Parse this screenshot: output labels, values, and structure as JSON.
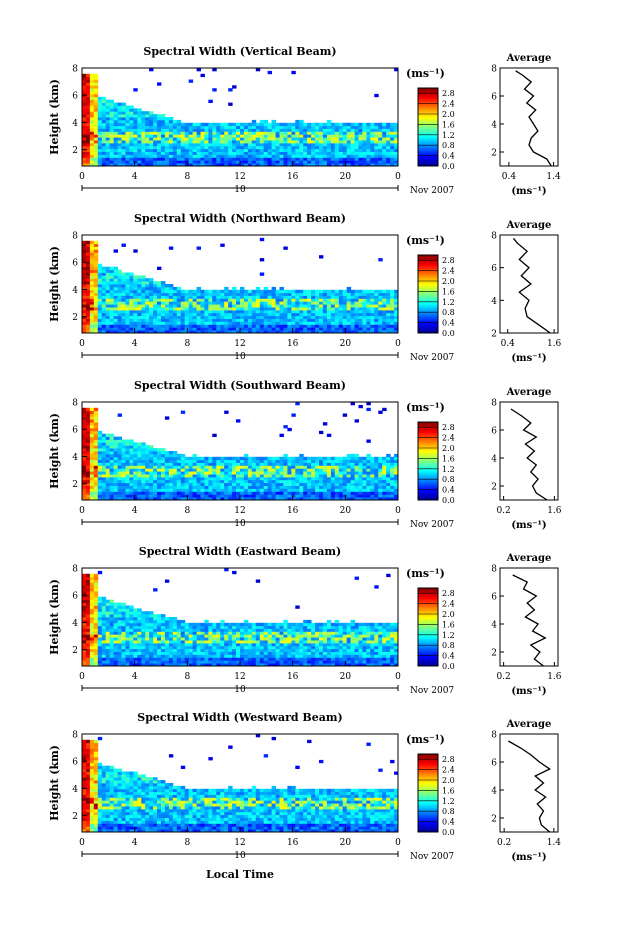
{
  "figure": {
    "x_axis_label": "Local Time",
    "date_label": "Nov 2007",
    "unit_label": "(ms⁻¹)",
    "average_title": "Average",
    "y_axis_label": "Height (km)"
  },
  "chart_data": [
    {
      "type": "heatmap",
      "title": "Spectral Width (Vertical Beam)",
      "xlabel": "Local Time",
      "ylabel": "Height (km)",
      "x_ticks": [
        "0",
        "4",
        "8",
        "12",
        "16",
        "20",
        "0"
      ],
      "x_date_label": "10",
      "x_date_suffix": "Nov 2007",
      "y_ticks": [
        "2",
        "4",
        "6",
        "8"
      ],
      "xlim": [
        0,
        24
      ],
      "ylim": [
        0.8,
        8
      ],
      "colorbar": {
        "label": "(ms⁻¹)",
        "ticks": [
          "0.0",
          "0.4",
          "0.8",
          "1.2",
          "1.6",
          "2.0",
          "2.4",
          "2.8"
        ],
        "range": [
          0,
          3.0
        ]
      },
      "cloud_top_km": 4.0,
      "average_profile": {
        "title": "Average",
        "xlabel": "(ms⁻¹)",
        "x_ticks": [
          "0.4",
          "1.4"
        ],
        "xlim": [
          0.2,
          1.5
        ],
        "ylim": [
          1,
          8
        ],
        "height_km": [
          1.0,
          1.5,
          2.0,
          2.5,
          3.0,
          3.5,
          4.0,
          4.5,
          5.0,
          5.5,
          6.0,
          6.5,
          7.0,
          7.5,
          7.8
        ],
        "width": [
          1.35,
          1.25,
          0.95,
          0.85,
          0.9,
          1.05,
          0.95,
          0.85,
          1.0,
          0.8,
          0.95,
          0.75,
          0.9,
          0.7,
          0.55
        ]
      }
    },
    {
      "type": "heatmap",
      "title": "Spectral Width (Northward Beam)",
      "xlabel": "Local Time",
      "ylabel": "Height (km)",
      "x_ticks": [
        "0",
        "4",
        "8",
        "12",
        "16",
        "20",
        "0"
      ],
      "x_date_label": "10",
      "x_date_suffix": "Nov 2007",
      "y_ticks": [
        "2",
        "4",
        "6",
        "8"
      ],
      "xlim": [
        0,
        24
      ],
      "ylim": [
        0.8,
        8
      ],
      "colorbar": {
        "label": "(ms⁻¹)",
        "ticks": [
          "0.0",
          "0.4",
          "0.8",
          "1.2",
          "1.6",
          "2.0",
          "2.4",
          "2.8"
        ],
        "range": [
          0,
          3.0
        ]
      },
      "cloud_top_km": 4.0,
      "average_profile": {
        "title": "Average",
        "xlabel": "(ms⁻¹)",
        "x_ticks": [
          "0.4",
          "1.6"
        ],
        "xlim": [
          0.2,
          1.7
        ],
        "ylim": [
          2,
          8
        ],
        "height_km": [
          2.0,
          2.5,
          3.0,
          3.5,
          4.0,
          4.5,
          5.0,
          5.5,
          6.0,
          6.5,
          7.0,
          7.5,
          7.8
        ],
        "width": [
          1.5,
          1.2,
          0.9,
          0.85,
          0.95,
          0.7,
          1.0,
          0.75,
          0.95,
          0.7,
          0.9,
          0.65,
          0.55
        ]
      }
    },
    {
      "type": "heatmap",
      "title": "Spectral Width (Southward Beam)",
      "xlabel": "Local Time",
      "ylabel": "Height (km)",
      "x_ticks": [
        "0",
        "4",
        "8",
        "12",
        "16",
        "20",
        "0"
      ],
      "x_date_label": "10",
      "x_date_suffix": "Nov 2007",
      "y_ticks": [
        "2",
        "4",
        "6",
        "8"
      ],
      "xlim": [
        0,
        24
      ],
      "ylim": [
        0.8,
        8
      ],
      "colorbar": {
        "label": "(ms⁻¹)",
        "ticks": [
          "0.0",
          "0.4",
          "0.8",
          "1.2",
          "1.6",
          "2.0",
          "2.4",
          "2.8"
        ],
        "range": [
          0,
          3.0
        ]
      },
      "cloud_top_km": 4.0,
      "average_profile": {
        "title": "Average",
        "xlabel": "(ms⁻¹)",
        "x_ticks": [
          "0.2",
          "1.6"
        ],
        "xlim": [
          0.1,
          1.7
        ],
        "ylim": [
          1,
          8
        ],
        "height_km": [
          1.0,
          1.5,
          2.0,
          2.5,
          3.0,
          3.5,
          4.0,
          4.5,
          5.0,
          5.5,
          6.0,
          6.5,
          7.0,
          7.5
        ],
        "width": [
          1.4,
          1.1,
          1.0,
          1.15,
          0.95,
          1.1,
          0.85,
          1.05,
          0.8,
          1.1,
          0.75,
          0.95,
          0.7,
          0.4
        ]
      }
    },
    {
      "type": "heatmap",
      "title": "Spectral Width (Eastward Beam)",
      "xlabel": "Local Time",
      "ylabel": "Height (km)",
      "x_ticks": [
        "0",
        "4",
        "8",
        "12",
        "16",
        "20",
        "0"
      ],
      "x_date_label": "10",
      "x_date_suffix": "Nov 2007",
      "y_ticks": [
        "2",
        "4",
        "6",
        "8"
      ],
      "xlim": [
        0,
        24
      ],
      "ylim": [
        0.8,
        8
      ],
      "colorbar": {
        "label": "(ms⁻¹)",
        "ticks": [
          "0.0",
          "0.4",
          "0.8",
          "1.2",
          "1.6",
          "2.0",
          "2.4",
          "2.8"
        ],
        "range": [
          0,
          3.0
        ]
      },
      "cloud_top_km": 4.0,
      "average_profile": {
        "title": "Average",
        "xlabel": "(ms⁻¹)",
        "x_ticks": [
          "0.2",
          "1.6"
        ],
        "xlim": [
          0.1,
          1.7
        ],
        "ylim": [
          1,
          8
        ],
        "height_km": [
          1.0,
          1.5,
          2.0,
          2.5,
          3.0,
          3.5,
          4.0,
          4.5,
          5.0,
          5.5,
          6.0,
          6.5,
          7.0,
          7.5
        ],
        "width": [
          1.3,
          1.05,
          1.2,
          0.95,
          1.35,
          1.0,
          1.15,
          0.8,
          1.05,
          0.85,
          1.1,
          0.75,
          0.85,
          0.45
        ]
      }
    },
    {
      "type": "heatmap",
      "title": "Spectral Width (Westward Beam)",
      "xlabel": "Local Time",
      "ylabel": "Height (km)",
      "x_ticks": [
        "0",
        "4",
        "8",
        "12",
        "16",
        "20",
        "0"
      ],
      "x_date_label": "10",
      "x_date_suffix": "Nov 2007",
      "y_ticks": [
        "2",
        "4",
        "6",
        "8"
      ],
      "xlim": [
        0,
        24
      ],
      "ylim": [
        0.8,
        8
      ],
      "colorbar": {
        "label": "(ms⁻¹)",
        "ticks": [
          "0.0",
          "0.4",
          "0.8",
          "1.2",
          "1.6",
          "2.0",
          "2.4",
          "2.8"
        ],
        "range": [
          0,
          3.0
        ]
      },
      "cloud_top_km": 4.0,
      "average_profile": {
        "title": "Average",
        "xlabel": "(ms⁻¹)",
        "x_ticks": [
          "0.2",
          "1.4"
        ],
        "xlim": [
          0.1,
          1.5
        ],
        "ylim": [
          1,
          8
        ],
        "height_km": [
          1.0,
          1.5,
          2.0,
          2.5,
          3.0,
          3.5,
          4.0,
          4.5,
          5.0,
          5.5,
          6.0,
          6.5,
          7.0,
          7.5
        ],
        "width": [
          1.3,
          1.1,
          1.05,
          1.15,
          1.0,
          1.2,
          0.95,
          1.15,
          0.95,
          1.3,
          1.05,
          0.85,
          0.6,
          0.3
        ]
      }
    }
  ]
}
